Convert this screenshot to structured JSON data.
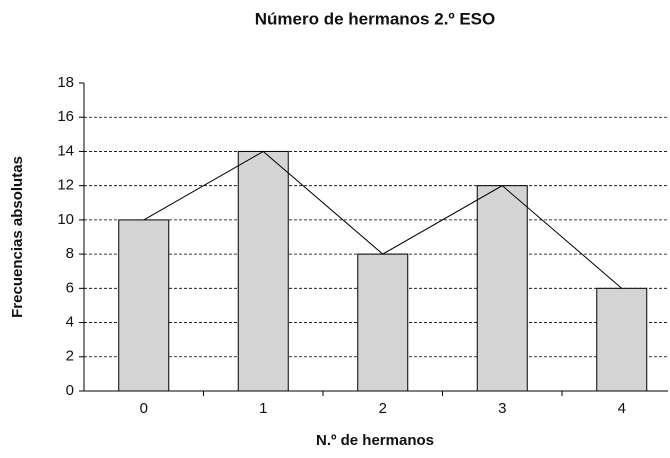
{
  "chart_data": {
    "type": "bar",
    "title": "Número de hermanos 2.º ESO",
    "x_label": "N.º de hermanos",
    "y_label": "Frecuencias absolutas",
    "categories": [
      "0",
      "1",
      "2",
      "3",
      "4"
    ],
    "values": [
      10,
      14,
      8,
      12,
      6
    ],
    "color": "#d4d4d4",
    "line_color": "#000000",
    "polygon": true,
    "ylim": [
      0,
      18
    ],
    "yticks": [
      0,
      2,
      4,
      6,
      8,
      10,
      12,
      14,
      16,
      18
    ],
    "grid": true
  }
}
